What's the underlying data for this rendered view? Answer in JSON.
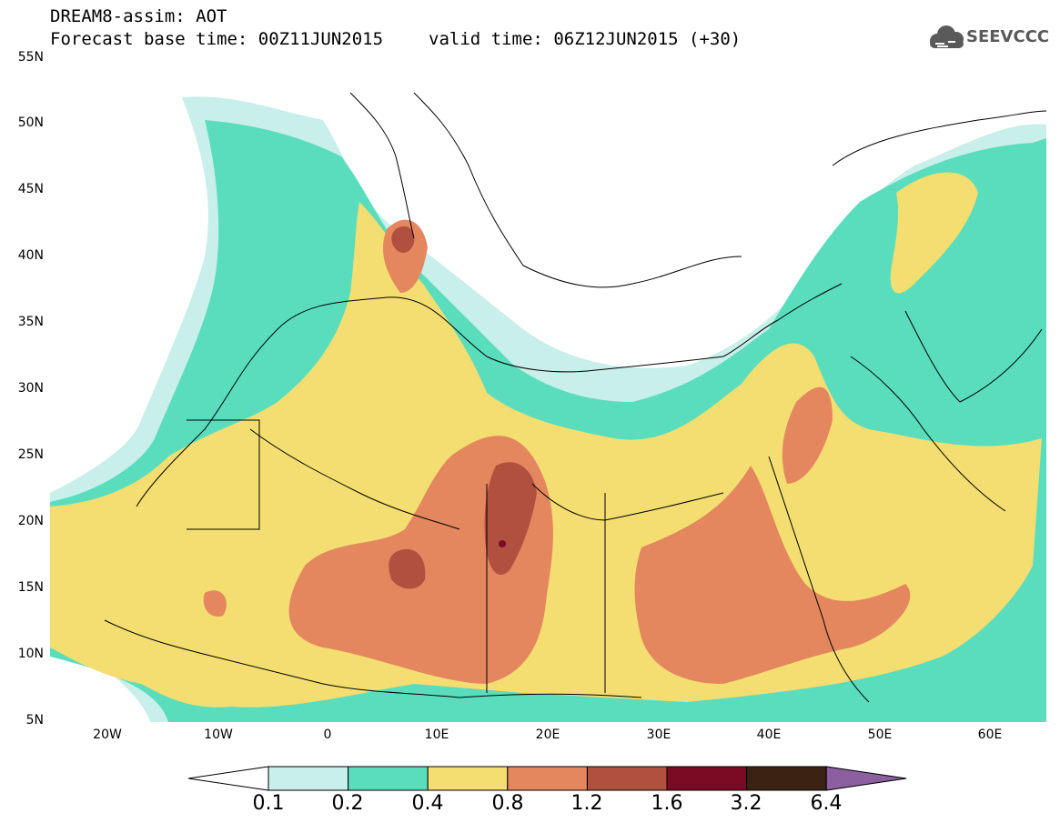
{
  "header": {
    "title_line1": "DREAM8-assim: AOT",
    "base_time": "Forecast base time: 00Z11JUN2015",
    "valid_time": "valid time: 06Z12JUN2015 (+30)",
    "logo_text": "SEEVCCC"
  },
  "map": {
    "lat_labels": [
      "55N",
      "50N",
      "45N",
      "40N",
      "35N",
      "30N",
      "25N",
      "20N",
      "15N",
      "10N",
      "5N"
    ],
    "lon_labels": [
      "20W",
      "10W",
      "0",
      "10E",
      "20E",
      "30E",
      "40E",
      "50E",
      "60E"
    ],
    "extent": {
      "lon": [
        -25,
        65
      ],
      "lat": [
        5,
        55
      ]
    }
  },
  "colorbar": {
    "levels": [
      "0.1",
      "0.2",
      "0.4",
      "0.8",
      "1.2",
      "1.6",
      "3.2",
      "6.4"
    ],
    "colors": [
      "#ffffff",
      "#c8efea",
      "#59ddbd",
      "#f4de71",
      "#e4875f",
      "#b0503f",
      "#7b0a25",
      "#3b2313",
      "#8b5fa0"
    ]
  }
}
